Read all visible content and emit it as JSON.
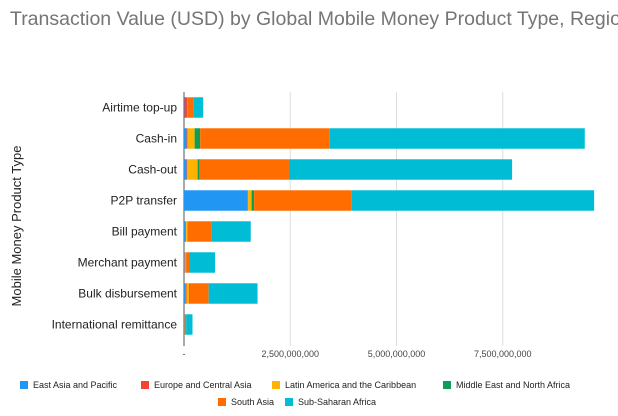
{
  "chart_data": {
    "type": "bar",
    "orientation": "horizontal",
    "stacked": true,
    "title": "Transaction Value (USD) by Global Mobile Money Product Type, Region",
    "ylabel": "Mobile Money Product Type",
    "xlabel": "",
    "xlim": [
      0,
      10000000000
    ],
    "x_ticks": [
      0,
      2500000000,
      5000000000,
      7500000000
    ],
    "x_tick_labels": [
      "-",
      "2,500,000,000",
      "5,000,000,000",
      "7,500,000,000"
    ],
    "grid": true,
    "legend_position": "bottom",
    "categories": [
      "Airtime top-up",
      "Cash-in",
      "Cash-out",
      "P2P transfer",
      "Bill payment",
      "Merchant payment",
      "Bulk disbursement",
      "International remittance"
    ],
    "series": [
      {
        "name": "East Asia and Pacific",
        "color": "#2196f3",
        "values": [
          10000000,
          60000000,
          60000000,
          1500000000,
          30000000,
          10000000,
          40000000,
          5000000
        ]
      },
      {
        "name": "Europe and Central Asia",
        "color": "#f44336",
        "values": [
          60000000,
          20000000,
          10000000,
          10000000,
          20000000,
          10000000,
          20000000,
          5000000
        ]
      },
      {
        "name": "Latin America and the Caribbean",
        "color": "#ffb300",
        "values": [
          5000000,
          170000000,
          250000000,
          80000000,
          30000000,
          20000000,
          60000000,
          5000000
        ]
      },
      {
        "name": "Middle East and North Africa",
        "color": "#0c9d58",
        "values": [
          5000000,
          130000000,
          50000000,
          60000000,
          10000000,
          10000000,
          20000000,
          5000000
        ]
      },
      {
        "name": "South Asia",
        "color": "#ff6d00",
        "values": [
          140000000,
          3050000000,
          2100000000,
          2300000000,
          550000000,
          80000000,
          440000000,
          30000000
        ]
      },
      {
        "name": "Sub-Saharan Africa",
        "color": "#00bcd4",
        "values": [
          230000000,
          6000000000,
          5250000000,
          5700000000,
          930000000,
          600000000,
          1150000000,
          150000000
        ]
      }
    ]
  }
}
